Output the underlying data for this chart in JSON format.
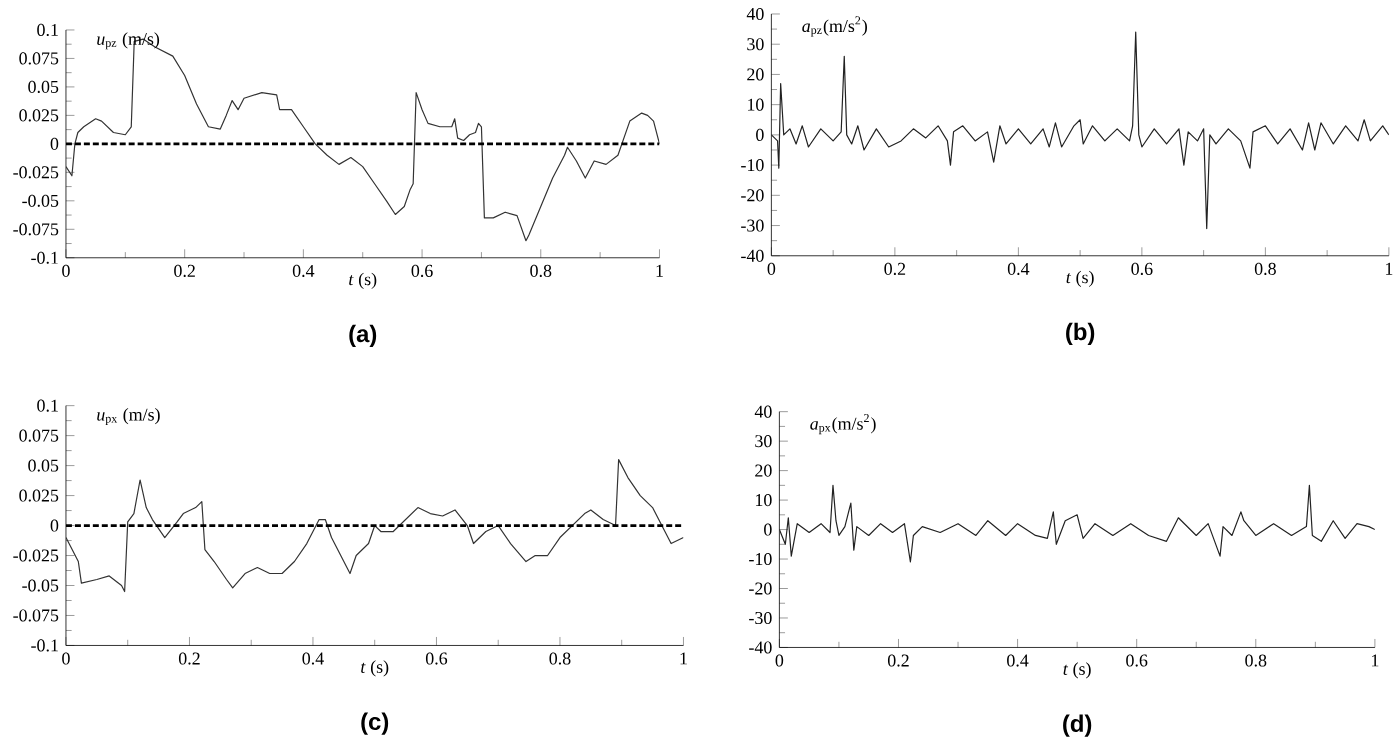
{
  "chart_data": [
    {
      "type": "line",
      "title": "(a)",
      "xlabel": "*t* (s)",
      "ylabel": "*u*$_{pz}$ (m/s)",
      "xlim": [
        0,
        1
      ],
      "xticks": [
        0,
        0.2,
        0.4,
        0.6,
        0.8,
        1
      ],
      "ylim": [
        -0.1,
        0.1
      ],
      "yticks": [
        -0.1,
        -0.075,
        -0.05,
        -0.025,
        0,
        0.025,
        0.05,
        0.075,
        0.1
      ],
      "ref_lines": [
        {
          "axis": "y",
          "value": 0,
          "line_style": "dashed",
          "color": "#000000"
        }
      ],
      "series": [
        {
          "color": "#333333",
          "x": [
            0,
            0.01,
            0.015,
            0.02,
            0.03,
            0.05,
            0.06,
            0.08,
            0.1,
            0.11,
            0.115,
            0.13,
            0.15,
            0.18,
            0.2,
            0.22,
            0.24,
            0.26,
            0.27,
            0.28,
            0.29,
            0.3,
            0.33,
            0.355,
            0.36,
            0.38,
            0.4,
            0.42,
            0.44,
            0.46,
            0.48,
            0.5,
            0.52,
            0.54,
            0.555,
            0.57,
            0.58,
            0.585,
            0.59,
            0.6,
            0.61,
            0.63,
            0.65,
            0.655,
            0.66,
            0.67,
            0.68,
            0.69,
            0.695,
            0.7,
            0.705,
            0.72,
            0.74,
            0.76,
            0.775,
            0.78,
            0.8,
            0.82,
            0.84,
            0.845,
            0.86,
            0.875,
            0.89,
            0.91,
            0.93,
            0.95,
            0.97,
            0.98,
            0.99,
            1
          ],
          "values": [
            -0.02,
            -0.028,
            0.0,
            0.01,
            0.015,
            0.022,
            0.02,
            0.01,
            0.008,
            0.015,
            0.09,
            0.092,
            0.085,
            0.077,
            0.06,
            0.035,
            0.015,
            0.013,
            0.025,
            0.038,
            0.03,
            0.04,
            0.045,
            0.043,
            0.03,
            0.03,
            0.015,
            0.0,
            -0.01,
            -0.018,
            -0.012,
            -0.02,
            -0.035,
            -0.05,
            -0.062,
            -0.055,
            -0.04,
            -0.035,
            0.045,
            0.03,
            0.018,
            0.015,
            0.015,
            0.022,
            0.005,
            0.003,
            0.008,
            0.01,
            0.018,
            0.015,
            -0.065,
            -0.065,
            -0.06,
            -0.063,
            -0.085,
            -0.08,
            -0.055,
            -0.03,
            -0.01,
            -0.003,
            -0.015,
            -0.03,
            -0.015,
            -0.018,
            -0.01,
            0.02,
            0.027,
            0.025,
            0.02,
            0.0
          ]
        }
      ]
    },
    {
      "type": "line",
      "title": "(b)",
      "xlabel": "*t* (s)",
      "ylabel": "*a*$_{pz}$(m/s$^{2}$)",
      "xlim": [
        0,
        1
      ],
      "xticks": [
        0,
        0.2,
        0.4,
        0.6,
        0.8,
        1
      ],
      "ylim": [
        -40,
        40
      ],
      "yticks": [
        -40,
        -30,
        -20,
        -10,
        0,
        10,
        20,
        30,
        40
      ],
      "series": [
        {
          "color": "#222222",
          "x": [
            0,
            0.01,
            0.012,
            0.015,
            0.02,
            0.03,
            0.04,
            0.05,
            0.06,
            0.08,
            0.1,
            0.113,
            0.118,
            0.122,
            0.13,
            0.14,
            0.15,
            0.17,
            0.19,
            0.21,
            0.23,
            0.25,
            0.27,
            0.285,
            0.29,
            0.295,
            0.31,
            0.33,
            0.35,
            0.36,
            0.37,
            0.38,
            0.4,
            0.42,
            0.44,
            0.45,
            0.46,
            0.47,
            0.49,
            0.5,
            0.505,
            0.52,
            0.54,
            0.56,
            0.58,
            0.585,
            0.59,
            0.595,
            0.6,
            0.62,
            0.64,
            0.66,
            0.668,
            0.675,
            0.69,
            0.7,
            0.705,
            0.71,
            0.72,
            0.74,
            0.76,
            0.775,
            0.78,
            0.8,
            0.82,
            0.84,
            0.86,
            0.87,
            0.88,
            0.89,
            0.91,
            0.93,
            0.95,
            0.96,
            0.97,
            0.99,
            1
          ],
          "values": [
            0,
            -2,
            -11,
            17,
            0,
            2,
            -3,
            3,
            -4,
            2,
            -2,
            1,
            26,
            0,
            -3,
            3,
            -5,
            2,
            -4,
            -2,
            2,
            -1,
            3,
            -2,
            -10,
            1,
            3,
            -2,
            1,
            -9,
            3,
            -3,
            2,
            -3,
            2,
            -4,
            4,
            -4,
            3,
            5,
            -3,
            3,
            -2,
            2,
            -2,
            3,
            34,
            0,
            -4,
            2,
            -3,
            2,
            -10,
            1,
            -2,
            2,
            -31,
            0,
            -3,
            2,
            -2,
            -11,
            1,
            3,
            -3,
            2,
            -5,
            4,
            -5,
            4,
            -3,
            3,
            -2,
            5,
            -2,
            3,
            0
          ]
        }
      ]
    },
    {
      "type": "line",
      "title": "(c)",
      "xlabel": "*t* (s)",
      "ylabel": "*u*$_{px}$ (m/s)",
      "xlim": [
        0,
        1
      ],
      "xticks": [
        0,
        0.2,
        0.4,
        0.6,
        0.8,
        1
      ],
      "ylim": [
        -0.1,
        0.1
      ],
      "yticks": [
        -0.1,
        -0.075,
        -0.05,
        -0.025,
        0,
        0.025,
        0.05,
        0.075,
        0.1
      ],
      "ref_lines": [
        {
          "axis": "y",
          "value": 0,
          "line_style": "dashed",
          "color": "#000000"
        }
      ],
      "series": [
        {
          "color": "#333333",
          "x": [
            0,
            0.01,
            0.02,
            0.025,
            0.05,
            0.07,
            0.09,
            0.095,
            0.1,
            0.11,
            0.12,
            0.13,
            0.14,
            0.16,
            0.18,
            0.19,
            0.21,
            0.22,
            0.225,
            0.24,
            0.26,
            0.27,
            0.29,
            0.31,
            0.33,
            0.35,
            0.37,
            0.39,
            0.41,
            0.42,
            0.43,
            0.45,
            0.46,
            0.47,
            0.49,
            0.5,
            0.51,
            0.53,
            0.55,
            0.57,
            0.59,
            0.61,
            0.63,
            0.65,
            0.66,
            0.68,
            0.7,
            0.72,
            0.745,
            0.76,
            0.78,
            0.8,
            0.82,
            0.84,
            0.85,
            0.87,
            0.89,
            0.895,
            0.91,
            0.93,
            0.95,
            0.97,
            0.98,
            1
          ],
          "values": [
            -0.01,
            -0.02,
            -0.03,
            -0.048,
            -0.045,
            -0.042,
            -0.05,
            -0.055,
            0.003,
            0.01,
            0.038,
            0.015,
            0.005,
            -0.01,
            0.003,
            0.01,
            0.015,
            0.02,
            -0.02,
            -0.03,
            -0.045,
            -0.052,
            -0.04,
            -0.035,
            -0.04,
            -0.04,
            -0.03,
            -0.015,
            0.005,
            0.005,
            -0.01,
            -0.03,
            -0.04,
            -0.025,
            -0.015,
            0.0,
            -0.005,
            -0.005,
            0.005,
            0.015,
            0.01,
            0.008,
            0.013,
            0.0,
            -0.015,
            -0.005,
            0.0,
            -0.015,
            -0.03,
            -0.025,
            -0.025,
            -0.01,
            0.0,
            0.01,
            0.013,
            0.005,
            0.0,
            0.055,
            0.04,
            0.025,
            0.015,
            -0.005,
            -0.015,
            -0.01
          ]
        }
      ]
    },
    {
      "type": "line",
      "title": "(d)",
      "xlabel": "*t* (s)",
      "ylabel": "*a*$_{px}$(m/s$^{2}$)",
      "xlim": [
        0,
        1
      ],
      "xticks": [
        0,
        0.2,
        0.4,
        0.6,
        0.8,
        1
      ],
      "ylim": [
        -40,
        40
      ],
      "yticks": [
        -40,
        -30,
        -20,
        -10,
        0,
        10,
        20,
        30,
        40
      ],
      "series": [
        {
          "color": "#222222",
          "x": [
            0,
            0.01,
            0.015,
            0.02,
            0.03,
            0.05,
            0.07,
            0.085,
            0.09,
            0.095,
            0.1,
            0.11,
            0.12,
            0.125,
            0.13,
            0.15,
            0.17,
            0.19,
            0.21,
            0.22,
            0.225,
            0.24,
            0.27,
            0.3,
            0.33,
            0.35,
            0.38,
            0.4,
            0.43,
            0.45,
            0.46,
            0.465,
            0.48,
            0.5,
            0.51,
            0.53,
            0.56,
            0.59,
            0.62,
            0.65,
            0.67,
            0.7,
            0.72,
            0.74,
            0.745,
            0.76,
            0.775,
            0.78,
            0.8,
            0.83,
            0.86,
            0.885,
            0.89,
            0.895,
            0.91,
            0.93,
            0.95,
            0.97,
            0.99,
            1
          ],
          "values": [
            0,
            -5,
            4,
            -9,
            2,
            -1,
            2,
            -1,
            15,
            3,
            -2,
            1,
            9,
            -7,
            1,
            -2,
            2,
            -1,
            2,
            -11,
            -2,
            1,
            -1,
            2,
            -2,
            3,
            -2,
            2,
            -2,
            -3,
            6,
            -5,
            3,
            5,
            -3,
            2,
            -2,
            2,
            -2,
            -4,
            4,
            -2,
            2,
            -9,
            1,
            -2,
            6,
            3,
            -2,
            2,
            -2,
            1,
            15,
            -2,
            -4,
            3,
            -3,
            2,
            1,
            0
          ]
        }
      ]
    }
  ]
}
